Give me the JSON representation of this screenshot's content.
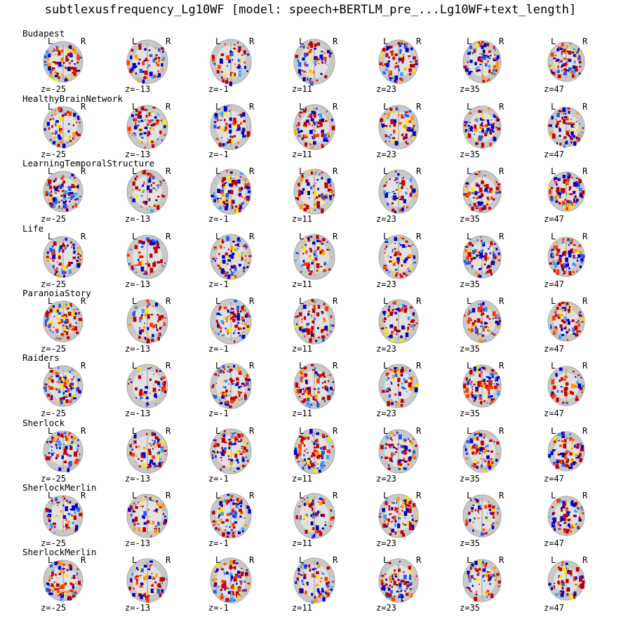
{
  "title": "subtlexusfrequency_Lg10WF [model: speech+BERTLM_pre_...Lg10WF+text_length]",
  "orientation": {
    "left": "L",
    "right": "R"
  },
  "slices": [
    "z=-25",
    "z=-13",
    "z=-1",
    "z=11",
    "z=23",
    "z=35",
    "z=47"
  ],
  "rows": [
    {
      "label": "Budapest"
    },
    {
      "label": "HealthyBrainNetwork"
    },
    {
      "label": "LearningTemporalStructure"
    },
    {
      "label": "Life"
    },
    {
      "label": "ParanoiaStory"
    },
    {
      "label": "Raiders"
    },
    {
      "label": "Sherlock"
    },
    {
      "label": "SherlockMerlin"
    },
    {
      "label": "SherlockMerlin"
    }
  ],
  "colors": {
    "positive_map": [
      "#c00000",
      "#ff3a00",
      "#ff9a00",
      "#ffe600"
    ],
    "negative_map": [
      "#0000c8",
      "#1e5aff",
      "#3aa0ff"
    ],
    "brain": "#c8c8c8"
  }
}
